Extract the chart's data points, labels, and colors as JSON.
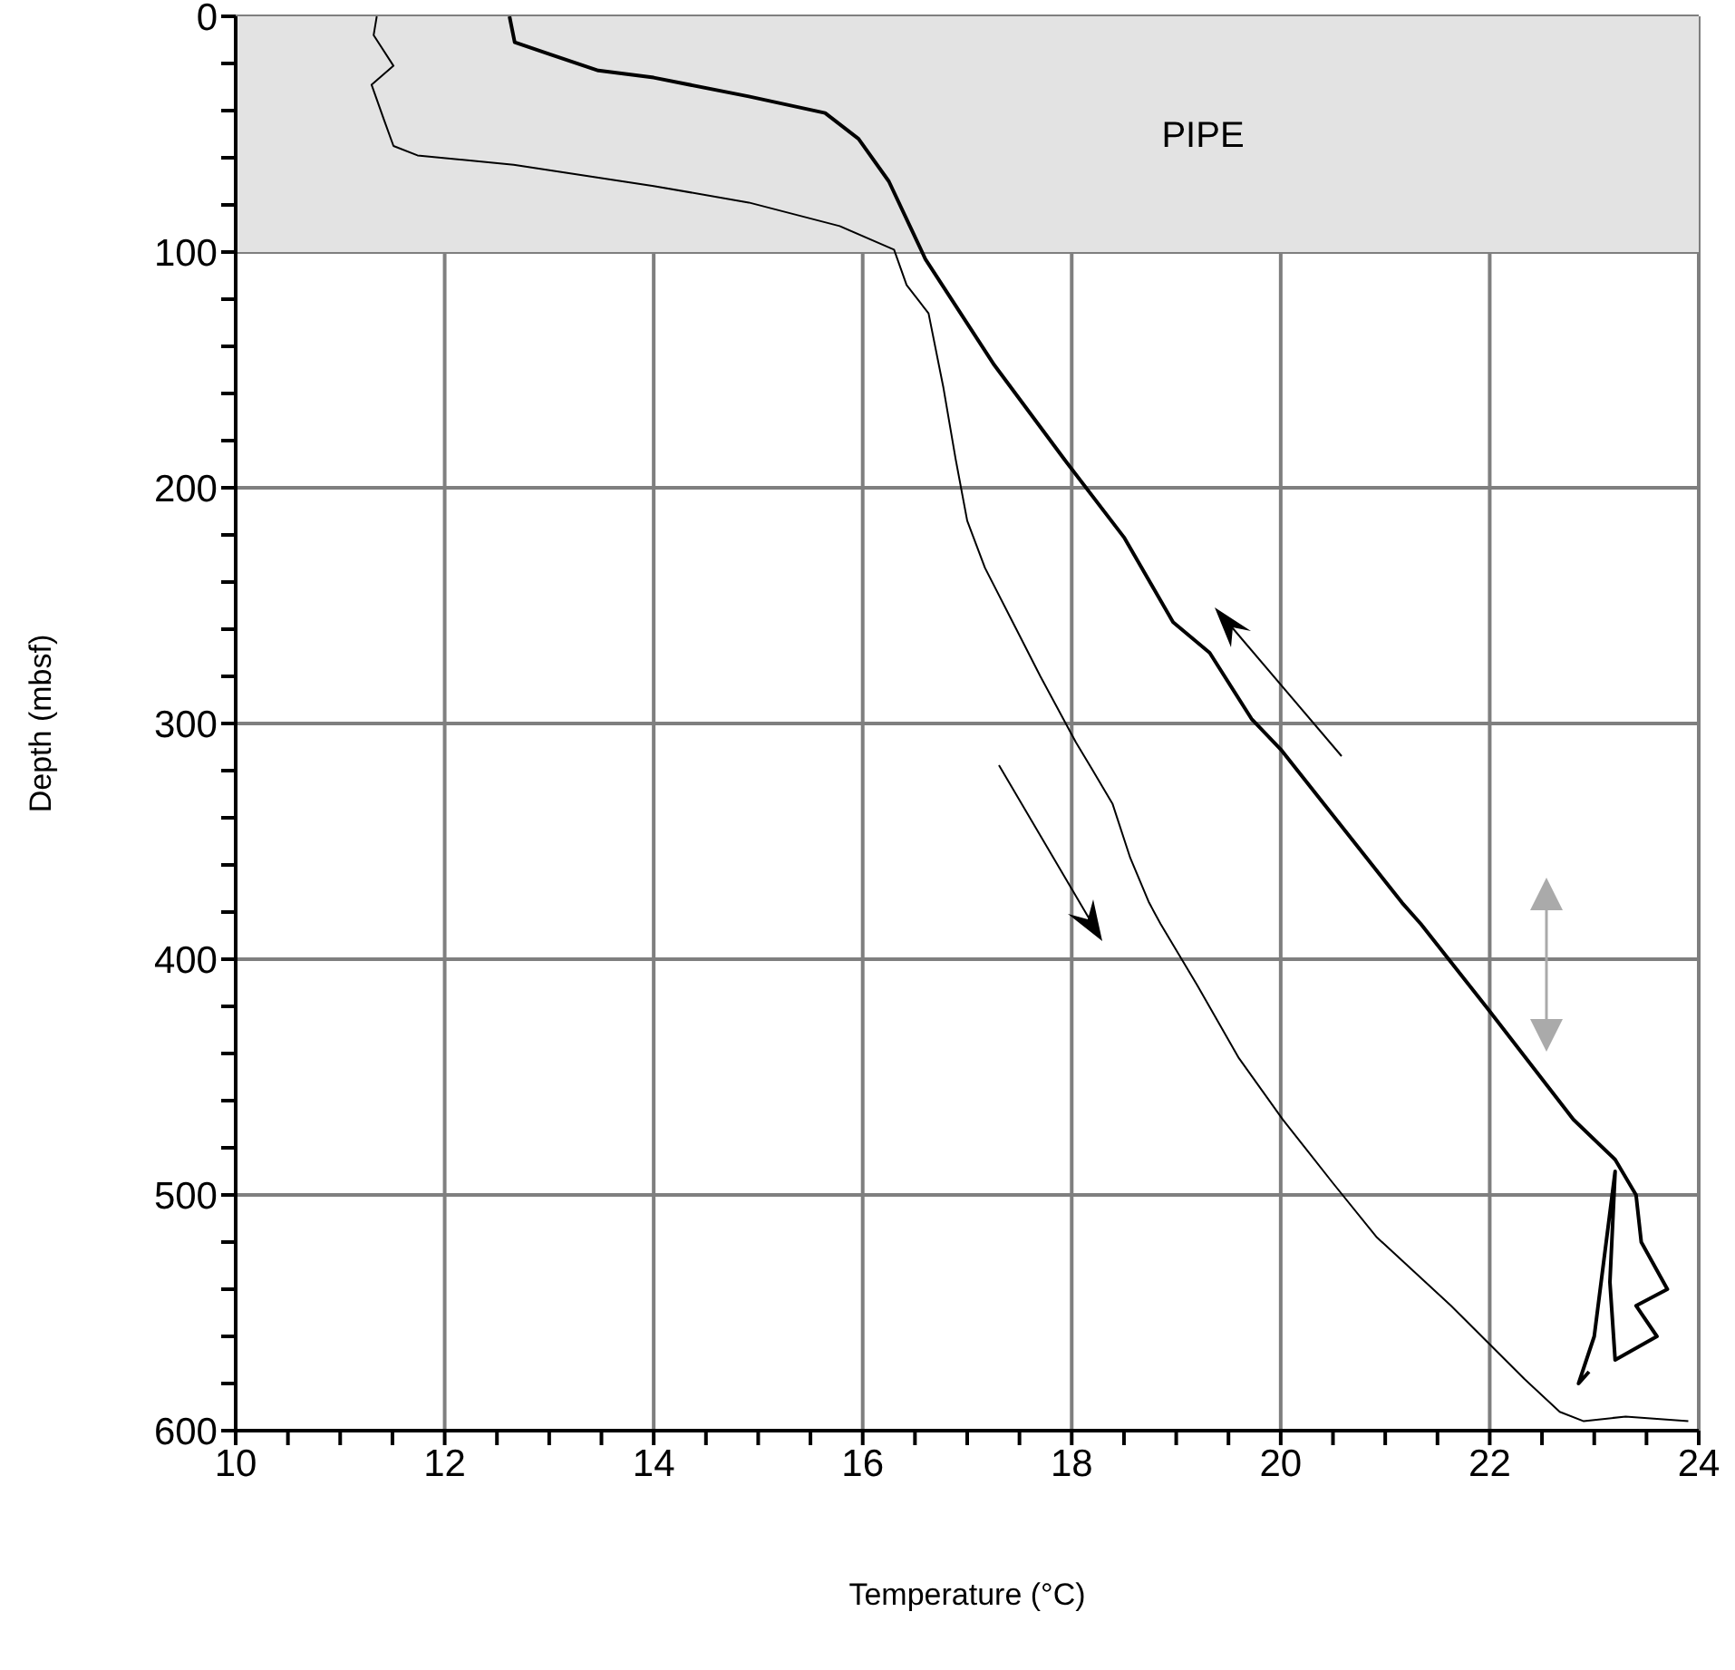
{
  "chart_data": {
    "type": "line",
    "xlabel": "Temperature (°C)",
    "ylabel": "Depth (mbsf)",
    "xlim": [
      10,
      24
    ],
    "xticks": [
      10,
      {
        "value": 10.5,
        "label": null
      },
      {
        "value": 11,
        "label": null
      },
      {
        "value": 11.5,
        "label": null
      },
      12,
      {
        "value": 12.5,
        "label": null
      },
      {
        "value": 13,
        "label": null
      },
      {
        "value": 13.5,
        "label": null
      },
      14,
      {
        "value": 14.5,
        "label": null
      },
      {
        "value": 15,
        "label": null
      },
      {
        "value": 15.5,
        "label": null
      },
      16,
      {
        "value": 16.5,
        "label": null
      },
      {
        "value": 17,
        "label": null
      },
      {
        "value": 17.5,
        "label": null
      },
      18,
      {
        "value": 18.5,
        "label": null
      },
      {
        "value": 19,
        "label": null
      },
      {
        "value": 19.5,
        "label": null
      },
      20,
      {
        "value": 20.5,
        "label": null
      },
      {
        "value": 21,
        "label": null
      },
      {
        "value": 21.5,
        "label": null
      },
      22,
      {
        "value": 22.5,
        "label": null
      },
      {
        "value": 23,
        "label": null
      },
      {
        "value": 23.5,
        "label": null
      },
      24
    ],
    "ylim": [
      600,
      0
    ],
    "yticks": [
      0,
      {
        "value": 20,
        "label": null
      },
      {
        "value": 40,
        "label": null
      },
      {
        "value": 60,
        "label": null
      },
      {
        "value": 80,
        "label": null
      },
      100,
      {
        "value": 120,
        "label": null
      },
      {
        "value": 140,
        "label": null
      },
      {
        "value": 160,
        "label": null
      },
      {
        "value": 180,
        "label": null
      },
      200,
      {
        "value": 220,
        "label": null
      },
      {
        "value": 240,
        "label": null
      },
      {
        "value": 260,
        "label": null
      },
      {
        "value": 280,
        "label": null
      },
      300,
      {
        "value": 320,
        "label": null
      },
      {
        "value": 340,
        "label": null
      },
      {
        "value": 360,
        "label": null
      },
      {
        "value": 380,
        "label": null
      },
      400,
      {
        "value": 420,
        "label": null
      },
      {
        "value": 440,
        "label": null
      },
      {
        "value": 460,
        "label": null
      },
      {
        "value": 480,
        "label": null
      },
      500,
      {
        "value": 520,
        "label": null
      },
      {
        "value": 540,
        "label": null
      },
      {
        "value": 560,
        "label": null
      },
      {
        "value": 580,
        "label": null
      },
      600
    ],
    "grid": true,
    "marker": "none",
    "line_style": "solid",
    "bands": [
      {
        "axis": "y",
        "from": 0,
        "to": 100,
        "label": "PIPE",
        "color": "#e3e3e3"
      }
    ],
    "series": [
      {
        "color": "#000000",
        "x": [
          11.35,
          11.32,
          11.51,
          11.3,
          11.42,
          11.51,
          11.74,
          12.66,
          14.0,
          14.91,
          15.78,
          16.3,
          16.42,
          16.63,
          16.77,
          16.89,
          17.0,
          17.17,
          17.47,
          17.7,
          18.04,
          18.19,
          18.39,
          18.56,
          18.74,
          18.85,
          19.2,
          19.6,
          20.02,
          20.5,
          20.92,
          21.63,
          22.33,
          22.67,
          22.9,
          23.3,
          23.9
        ],
        "values": [
          0,
          8,
          21,
          29,
          44,
          55,
          59,
          63,
          72,
          79,
          89,
          99,
          114,
          126,
          157,
          188,
          214,
          234,
          260,
          280,
          308,
          319,
          334,
          357,
          376,
          385,
          411,
          442,
          468,
          495,
          518,
          547,
          578,
          592,
          596,
          594,
          596
        ]
      },
      {
        "color": "#000000",
        "x": [
          12.62,
          12.67,
          13.0,
          13.47,
          14.0,
          14.91,
          15.64,
          15.96,
          16.25,
          16.6,
          17.26,
          17.93,
          18.5,
          18.97,
          19.32,
          19.72,
          20.0,
          21.16,
          21.34,
          21.98,
          22.8,
          23.2,
          23.4,
          23.45,
          23.7,
          23.4,
          23.6,
          23.2,
          23.15,
          23.2,
          23.0,
          22.85,
          22.95
        ],
        "values": [
          0,
          11,
          16,
          23,
          26,
          34,
          41,
          52,
          70,
          103,
          148,
          188,
          221,
          257,
          270,
          298,
          311,
          376,
          385,
          421,
          468,
          485,
          500,
          520,
          540,
          547,
          560,
          570,
          537,
          490,
          560,
          580,
          575
        ]
      }
    ]
  }
}
